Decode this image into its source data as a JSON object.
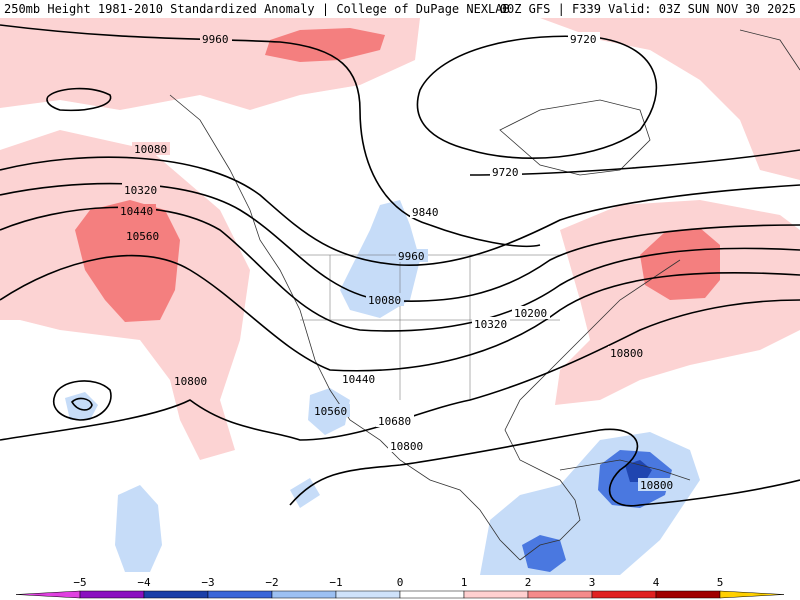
{
  "header": {
    "left": "250mb Height 1981-2010 Standardized Anomaly | College of DuPage NEXLAB",
    "right": "00Z GFS | F339 Valid: 03Z SUN NOV 30 2025"
  },
  "contour_labels": [
    "9960",
    "9720",
    "9720",
    "10080",
    "10320",
    "10440",
    "10560",
    "9840",
    "9960",
    "10080",
    "10320",
    "10200",
    "10800",
    "10440",
    "10800",
    "10560",
    "10680",
    "10800",
    "10800"
  ],
  "colorbar": {
    "ticks": [
      "−5",
      "−4",
      "−3",
      "−2",
      "−1",
      "0",
      "1",
      "2",
      "3",
      "4",
      "5"
    ],
    "colors": [
      "#e040e0",
      "#8a10c0",
      "#1a3fa8",
      "#3a66d8",
      "#9cc0f2",
      "#cfe2fa",
      "#ffffff",
      "#ffd0d0",
      "#f58a8a",
      "#e02020",
      "#a00000",
      "#ff8c00",
      "#ffd000"
    ]
  }
}
